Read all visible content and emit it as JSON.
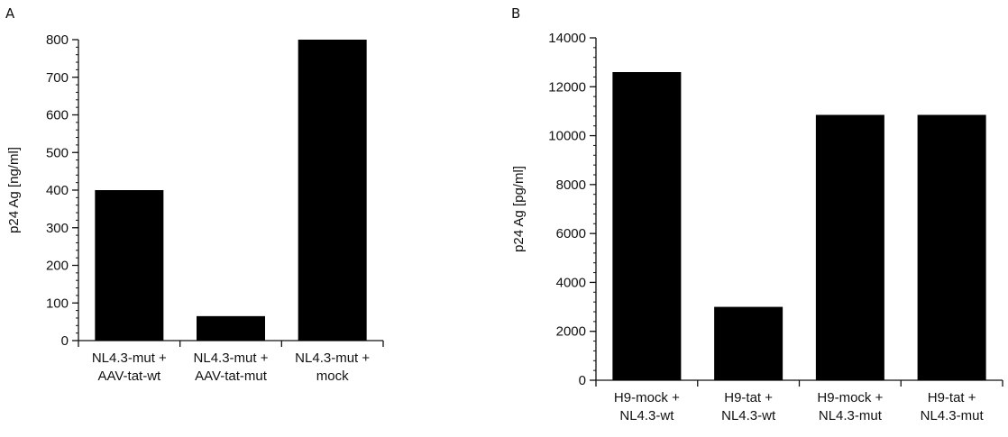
{
  "chart_data": [
    {
      "type": "bar",
      "panel_label": "A",
      "categories": [
        [
          "NL4.3-mut +",
          "AAV-tat-wt"
        ],
        [
          "NL4.3-mut +",
          "AAV-tat-mut"
        ],
        [
          "NL4.3-mut +",
          "mock"
        ]
      ],
      "values": [
        400,
        65,
        800
      ],
      "ylabel": "p24 Ag [ng/ml]",
      "ylim": [
        0,
        800
      ],
      "yticks": [
        0,
        100,
        200,
        300,
        400,
        500,
        600,
        700,
        800
      ],
      "yminor_step": 20,
      "bar_color": "#000000",
      "grid": false
    },
    {
      "type": "bar",
      "panel_label": "B",
      "categories": [
        [
          "H9-mock +",
          "NL4.3-wt"
        ],
        [
          "H9-tat +",
          "NL4.3-wt"
        ],
        [
          "H9-mock +",
          "NL4.3-mut"
        ],
        [
          "H9-tat +",
          "NL4.3-mut"
        ]
      ],
      "values": [
        12600,
        3000,
        10850,
        10850
      ],
      "ylabel": "p24 Ag [pg/ml]",
      "ylim": [
        0,
        14000
      ],
      "yticks": [
        0,
        2000,
        4000,
        6000,
        8000,
        10000,
        12000,
        14000
      ],
      "yminor_step": 400,
      "bar_color": "#000000",
      "grid": false
    }
  ]
}
